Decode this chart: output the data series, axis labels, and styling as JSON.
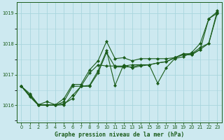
{
  "title": "Graphe pression niveau de la mer (hPa)",
  "background_color": "#cde9f0",
  "grid_color": "#a8d5de",
  "line_color": "#1a5c1a",
  "marker_color": "#1a5c1a",
  "xlim": [
    -0.5,
    23.5
  ],
  "ylim": [
    1015.45,
    1019.35
  ],
  "yticks": [
    1016,
    1017,
    1018,
    1019
  ],
  "xticks": [
    0,
    1,
    2,
    3,
    4,
    5,
    6,
    7,
    8,
    9,
    10,
    11,
    12,
    13,
    14,
    15,
    16,
    17,
    18,
    19,
    20,
    21,
    22,
    23
  ],
  "series": [
    [
      1016.62,
      1016.28,
      1016.0,
      1016.0,
      1016.02,
      1016.05,
      1016.22,
      1016.62,
      1016.65,
      1017.12,
      1017.78,
      1016.65,
      1017.32,
      1017.22,
      1017.28,
      1017.32,
      1016.72,
      1017.22,
      1017.52,
      1017.58,
      1017.72,
      1018.02,
      1018.82,
      1019.05
    ],
    [
      1016.62,
      1016.32,
      1016.02,
      1016.02,
      1016.0,
      1016.02,
      1016.32,
      1016.62,
      1016.62,
      1017.05,
      1017.72,
      1017.25,
      1017.25,
      1017.25,
      1017.32,
      1017.32,
      1017.38,
      1017.42,
      1017.55,
      1017.65,
      1017.65,
      1017.82,
      1018.82,
      1019.0
    ],
    [
      1016.62,
      1016.32,
      1016.02,
      1016.02,
      1016.0,
      1016.12,
      1016.62,
      1016.62,
      1017.05,
      1017.32,
      1017.28,
      1017.28,
      1017.28,
      1017.32,
      1017.32,
      1017.32,
      1017.38,
      1017.42,
      1017.55,
      1017.65,
      1017.65,
      1017.82,
      1018.02,
      1019.0
    ],
    [
      1016.62,
      1016.38,
      1016.02,
      1016.12,
      1016.02,
      1016.22,
      1016.68,
      1016.68,
      1017.15,
      1017.45,
      1018.08,
      1017.52,
      1017.55,
      1017.45,
      1017.52,
      1017.52,
      1017.52,
      1017.52,
      1017.55,
      1017.68,
      1017.68,
      1017.88,
      1018.02,
      1019.08
    ]
  ]
}
